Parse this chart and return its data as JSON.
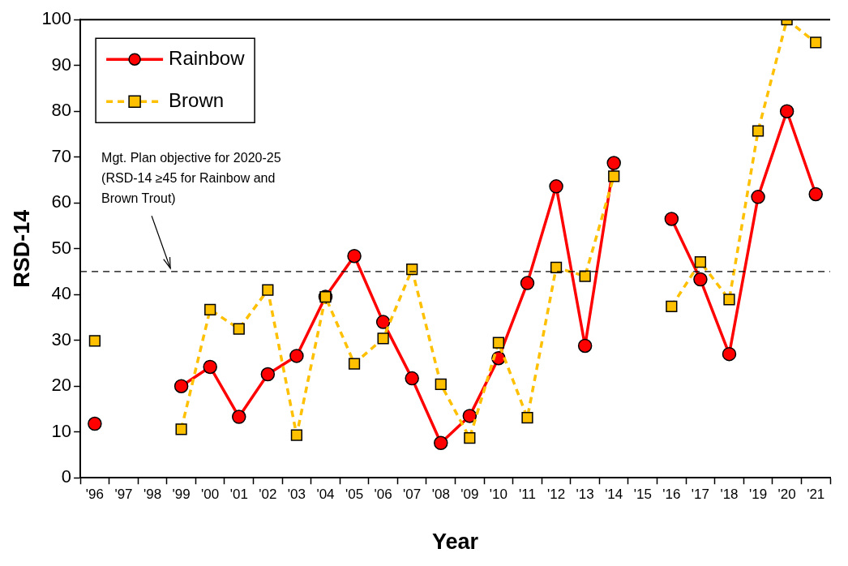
{
  "chart_data": {
    "type": "line",
    "xlabel": "Year",
    "ylabel": "RSD-14",
    "categories": [
      "'96",
      "'97",
      "'98",
      "'99",
      "'00",
      "'01",
      "'02",
      "'03",
      "'04",
      "'05",
      "'06",
      "'07",
      "'08",
      "'09",
      "'10",
      "'11",
      "'12",
      "'13",
      "'14",
      "'15",
      "'16",
      "'17",
      "'18",
      "'19",
      "'20",
      "'21"
    ],
    "series": [
      {
        "name": "Rainbow",
        "color": "#ff0000",
        "marker": "circle",
        "line_style": "solid",
        "values": [
          11.8,
          null,
          null,
          20.0,
          24.2,
          13.3,
          22.6,
          26.6,
          39.5,
          48.4,
          34.0,
          21.7,
          7.6,
          13.5,
          26.1,
          42.5,
          63.6,
          28.8,
          68.7,
          null,
          56.5,
          43.3,
          27.0,
          61.3,
          80,
          61.9
        ]
      },
      {
        "name": "Brown",
        "color": "#ffc000",
        "marker": "square",
        "line_style": "dashed",
        "values": [
          29.9,
          null,
          null,
          10.6,
          36.7,
          32.5,
          41.0,
          9.3,
          39.5,
          24.9,
          30.4,
          45.5,
          20.4,
          8.7,
          29.5,
          13.1,
          45.9,
          44.0,
          65.8,
          null,
          37.4,
          47.1,
          38.9,
          75.7,
          100,
          95.0
        ]
      }
    ],
    "ylim": [
      0,
      100
    ],
    "yticks": [
      0,
      10,
      20,
      30,
      40,
      50,
      60,
      70,
      80,
      90,
      100
    ],
    "ref_lines": [
      {
        "axis": "y",
        "value": 45,
        "label": "Mgt. Plan objective for 2020-25 (RSD-14 ≥45 for Rainbow and Brown Trout)",
        "line_style": "dashed",
        "color": "#000000"
      }
    ],
    "grid": false,
    "legend": "top left"
  }
}
